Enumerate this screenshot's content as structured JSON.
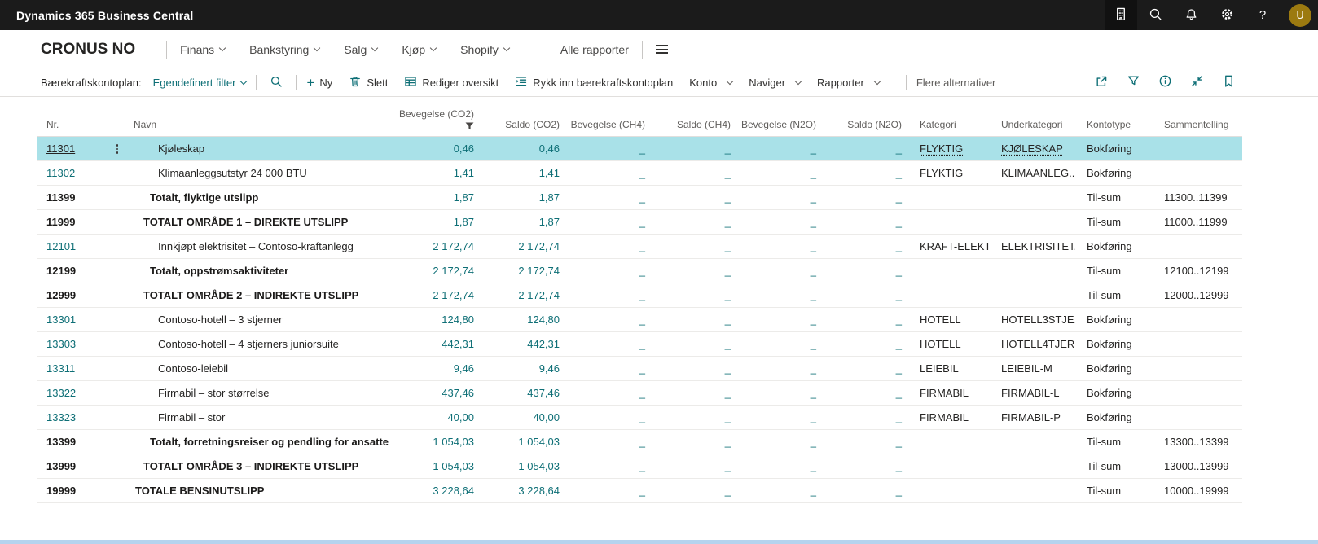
{
  "topbar": {
    "title": "Dynamics 365 Business Central",
    "icons": [
      "company-environment",
      "search",
      "notifications",
      "settings",
      "help"
    ],
    "help_label": "?",
    "avatar_initial": "U"
  },
  "nav": {
    "company": "CRONUS NO",
    "items": [
      "Finans",
      "Bankstyring",
      "Salg",
      "Kjøp",
      "Shopify"
    ],
    "all_reports": "Alle rapporter"
  },
  "command_bar": {
    "page_caption": "Bærekraftskontoplan:",
    "filter_label": "Egendefinert filter",
    "actions": [
      {
        "icon": "plus-icon",
        "label": "Ny"
      },
      {
        "icon": "trash-icon",
        "label": "Slett"
      },
      {
        "icon": "edit-list-icon",
        "label": "Rediger oversikt"
      },
      {
        "icon": "indent-icon",
        "label": "Rykk inn bærekraftskontoplan"
      },
      {
        "icon": "chevron-down-icon",
        "label": "Konto"
      },
      {
        "icon": "chevron-down-icon",
        "label": "Naviger"
      },
      {
        "icon": "chevron-down-icon",
        "label": "Rapporter"
      }
    ],
    "more_label": "Flere alternativer",
    "right_icons": [
      "share",
      "filter",
      "info",
      "collapse-view",
      "bookmark"
    ]
  },
  "table": {
    "columns": [
      "Nr.",
      "Navn",
      "Bevegelse (CO2)",
      "Saldo (CO2)",
      "Bevegelse (CH4)",
      "Saldo (CH4)",
      "Bevegelse (N2O)",
      "Saldo (N2O)",
      "Kategori",
      "Underkategori",
      "Kontotype",
      "Sammentelling"
    ],
    "sorted_filtered_column": "Bevegelse (CO2)",
    "rows": [
      {
        "nr": "11301",
        "name": "Kjøleskap",
        "indent": 3,
        "bold": false,
        "selected": true,
        "bev_co2": "0,46",
        "saldo_co2": "0,46",
        "bev_ch4": "_",
        "saldo_ch4": "_",
        "bev_n2o": "_",
        "saldo_n2o": "_",
        "kategori": "FLYKTIG",
        "underkategori": "KJØLESKAP",
        "kontotype": "Bokføring",
        "sammentelling": ""
      },
      {
        "nr": "11302",
        "name": "Klimaanleggsutstyr 24 000 BTU",
        "indent": 3,
        "bold": false,
        "selected": false,
        "bev_co2": "1,41",
        "saldo_co2": "1,41",
        "bev_ch4": "_",
        "saldo_ch4": "_",
        "bev_n2o": "_",
        "saldo_n2o": "_",
        "kategori": "FLYKTIG",
        "underkategori": "KLIMAANLEG...",
        "kontotype": "Bokføring",
        "sammentelling": ""
      },
      {
        "nr": "11399",
        "name": "Totalt, flyktige utslipp",
        "indent": 2,
        "bold": true,
        "selected": false,
        "bev_co2": "1,87",
        "saldo_co2": "1,87",
        "bev_ch4": "_",
        "saldo_ch4": "_",
        "bev_n2o": "_",
        "saldo_n2o": "_",
        "kategori": "",
        "underkategori": "",
        "kontotype": "Til-sum",
        "sammentelling": "11300..11399"
      },
      {
        "nr": "11999",
        "name": "TOTALT OMRÅDE 1 – DIREKTE UTSLIPP",
        "indent": 1,
        "bold": true,
        "selected": false,
        "bev_co2": "1,87",
        "saldo_co2": "1,87",
        "bev_ch4": "_",
        "saldo_ch4": "_",
        "bev_n2o": "_",
        "saldo_n2o": "_",
        "kategori": "",
        "underkategori": "",
        "kontotype": "Til-sum",
        "sammentelling": "11000..11999"
      },
      {
        "nr": "12101",
        "name": "Innkjøpt elektrisitet – Contoso-kraftanlegg",
        "indent": 3,
        "bold": false,
        "selected": false,
        "bev_co2": "2 172,74",
        "saldo_co2": "2 172,74",
        "bev_ch4": "_",
        "saldo_ch4": "_",
        "bev_n2o": "_",
        "saldo_n2o": "_",
        "kategori": "KRAFT-ELEKT...",
        "underkategori": "ELEKTRISITET...",
        "kontotype": "Bokføring",
        "sammentelling": ""
      },
      {
        "nr": "12199",
        "name": "Totalt, oppstrømsaktiviteter",
        "indent": 2,
        "bold": true,
        "selected": false,
        "bev_co2": "2 172,74",
        "saldo_co2": "2 172,74",
        "bev_ch4": "_",
        "saldo_ch4": "_",
        "bev_n2o": "_",
        "saldo_n2o": "_",
        "kategori": "",
        "underkategori": "",
        "kontotype": "Til-sum",
        "sammentelling": "12100..12199"
      },
      {
        "nr": "12999",
        "name": "TOTALT OMRÅDE 2 – INDIREKTE UTSLIPP",
        "indent": 1,
        "bold": true,
        "selected": false,
        "bev_co2": "2 172,74",
        "saldo_co2": "2 172,74",
        "bev_ch4": "_",
        "saldo_ch4": "_",
        "bev_n2o": "_",
        "saldo_n2o": "_",
        "kategori": "",
        "underkategori": "",
        "kontotype": "Til-sum",
        "sammentelling": "12000..12999"
      },
      {
        "nr": "13301",
        "name": "Contoso-hotell – 3 stjerner",
        "indent": 3,
        "bold": false,
        "selected": false,
        "bev_co2": "124,80",
        "saldo_co2": "124,80",
        "bev_ch4": "_",
        "saldo_ch4": "_",
        "bev_n2o": "_",
        "saldo_n2o": "_",
        "kategori": "HOTELL",
        "underkategori": "HOTELL3STJE...",
        "kontotype": "Bokføring",
        "sammentelling": ""
      },
      {
        "nr": "13303",
        "name": "Contoso-hotell – 4 stjerners juniorsuite",
        "indent": 3,
        "bold": false,
        "selected": false,
        "bev_co2": "442,31",
        "saldo_co2": "442,31",
        "bev_ch4": "_",
        "saldo_ch4": "_",
        "bev_n2o": "_",
        "saldo_n2o": "_",
        "kategori": "HOTELL",
        "underkategori": "HOTELL4TJER...",
        "kontotype": "Bokføring",
        "sammentelling": ""
      },
      {
        "nr": "13311",
        "name": "Contoso-leiebil",
        "indent": 3,
        "bold": false,
        "selected": false,
        "bev_co2": "9,46",
        "saldo_co2": "9,46",
        "bev_ch4": "_",
        "saldo_ch4": "_",
        "bev_n2o": "_",
        "saldo_n2o": "_",
        "kategori": "LEIEBIL",
        "underkategori": "LEIEBIL-M",
        "kontotype": "Bokføring",
        "sammentelling": ""
      },
      {
        "nr": "13322",
        "name": "Firmabil – stor størrelse",
        "indent": 3,
        "bold": false,
        "selected": false,
        "bev_co2": "437,46",
        "saldo_co2": "437,46",
        "bev_ch4": "_",
        "saldo_ch4": "_",
        "bev_n2o": "_",
        "saldo_n2o": "_",
        "kategori": "FIRMABIL",
        "underkategori": "FIRMABIL-L",
        "kontotype": "Bokføring",
        "sammentelling": ""
      },
      {
        "nr": "13323",
        "name": "Firmabil – stor",
        "indent": 3,
        "bold": false,
        "selected": false,
        "bev_co2": "40,00",
        "saldo_co2": "40,00",
        "bev_ch4": "_",
        "saldo_ch4": "_",
        "bev_n2o": "_",
        "saldo_n2o": "_",
        "kategori": "FIRMABIL",
        "underkategori": "FIRMABIL-P",
        "kontotype": "Bokføring",
        "sammentelling": ""
      },
      {
        "nr": "13399",
        "name": "Totalt, forretningsreiser og pendling for ansatte",
        "indent": 2,
        "bold": true,
        "selected": false,
        "bev_co2": "1 054,03",
        "saldo_co2": "1 054,03",
        "bev_ch4": "_",
        "saldo_ch4": "_",
        "bev_n2o": "_",
        "saldo_n2o": "_",
        "kategori": "",
        "underkategori": "",
        "kontotype": "Til-sum",
        "sammentelling": "13300..13399"
      },
      {
        "nr": "13999",
        "name": "TOTALT OMRÅDE 3 – INDIREKTE UTSLIPP",
        "indent": 1,
        "bold": true,
        "selected": false,
        "bev_co2": "1 054,03",
        "saldo_co2": "1 054,03",
        "bev_ch4": "_",
        "saldo_ch4": "_",
        "bev_n2o": "_",
        "saldo_n2o": "_",
        "kategori": "",
        "underkategori": "",
        "kontotype": "Til-sum",
        "sammentelling": "13000..13999"
      },
      {
        "nr": "19999",
        "name": "TOTALE BENSINUTSLIPP",
        "indent": 0,
        "bold": true,
        "selected": false,
        "bev_co2": "3 228,64",
        "saldo_co2": "3 228,64",
        "bev_ch4": "_",
        "saldo_ch4": "_",
        "bev_n2o": "_",
        "saldo_n2o": "_",
        "kategori": "",
        "underkategori": "",
        "kontotype": "Til-sum",
        "sammentelling": "10000..19999"
      }
    ]
  },
  "colors": {
    "topbar_bg": "#1b1b1b",
    "accent_teal": "#0e6f76",
    "selection_bg": "#a9e1e8",
    "avatar_bg": "#9c7a10"
  }
}
